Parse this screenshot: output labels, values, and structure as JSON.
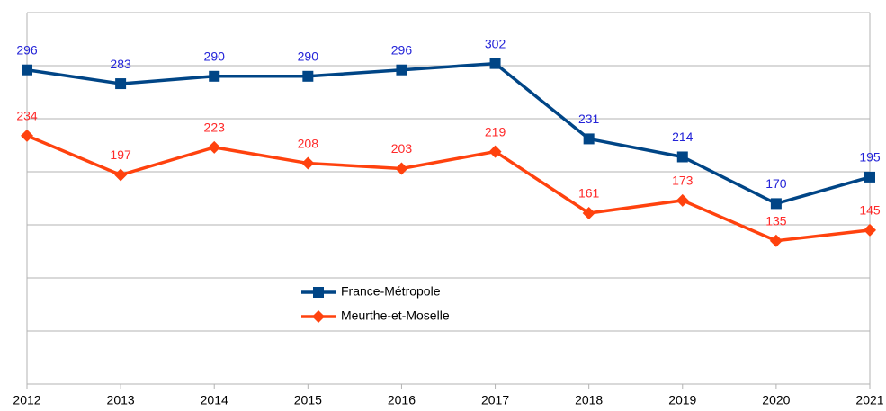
{
  "chart_data": {
    "type": "line",
    "categories": [
      "2012",
      "2013",
      "2014",
      "2015",
      "2016",
      "2017",
      "2018",
      "2019",
      "2020",
      "2021"
    ],
    "series": [
      {
        "name": "France-Métropole",
        "color": "#004586",
        "label_color": "#2424d8",
        "marker": "square",
        "values": [
          296,
          283,
          290,
          290,
          296,
          302,
          231,
          214,
          170,
          195
        ]
      },
      {
        "name": "Meurthe-et-Moselle",
        "color": "#ff420e",
        "label_color": "#ff2a2a",
        "marker": "diamond",
        "values": [
          234,
          197,
          223,
          208,
          203,
          219,
          161,
          173,
          135,
          145
        ]
      }
    ],
    "ylim": [
      0,
      350
    ],
    "yticks": [
      0,
      50,
      100,
      150,
      200,
      250,
      300,
      350
    ],
    "grid": true,
    "legend": "center"
  }
}
